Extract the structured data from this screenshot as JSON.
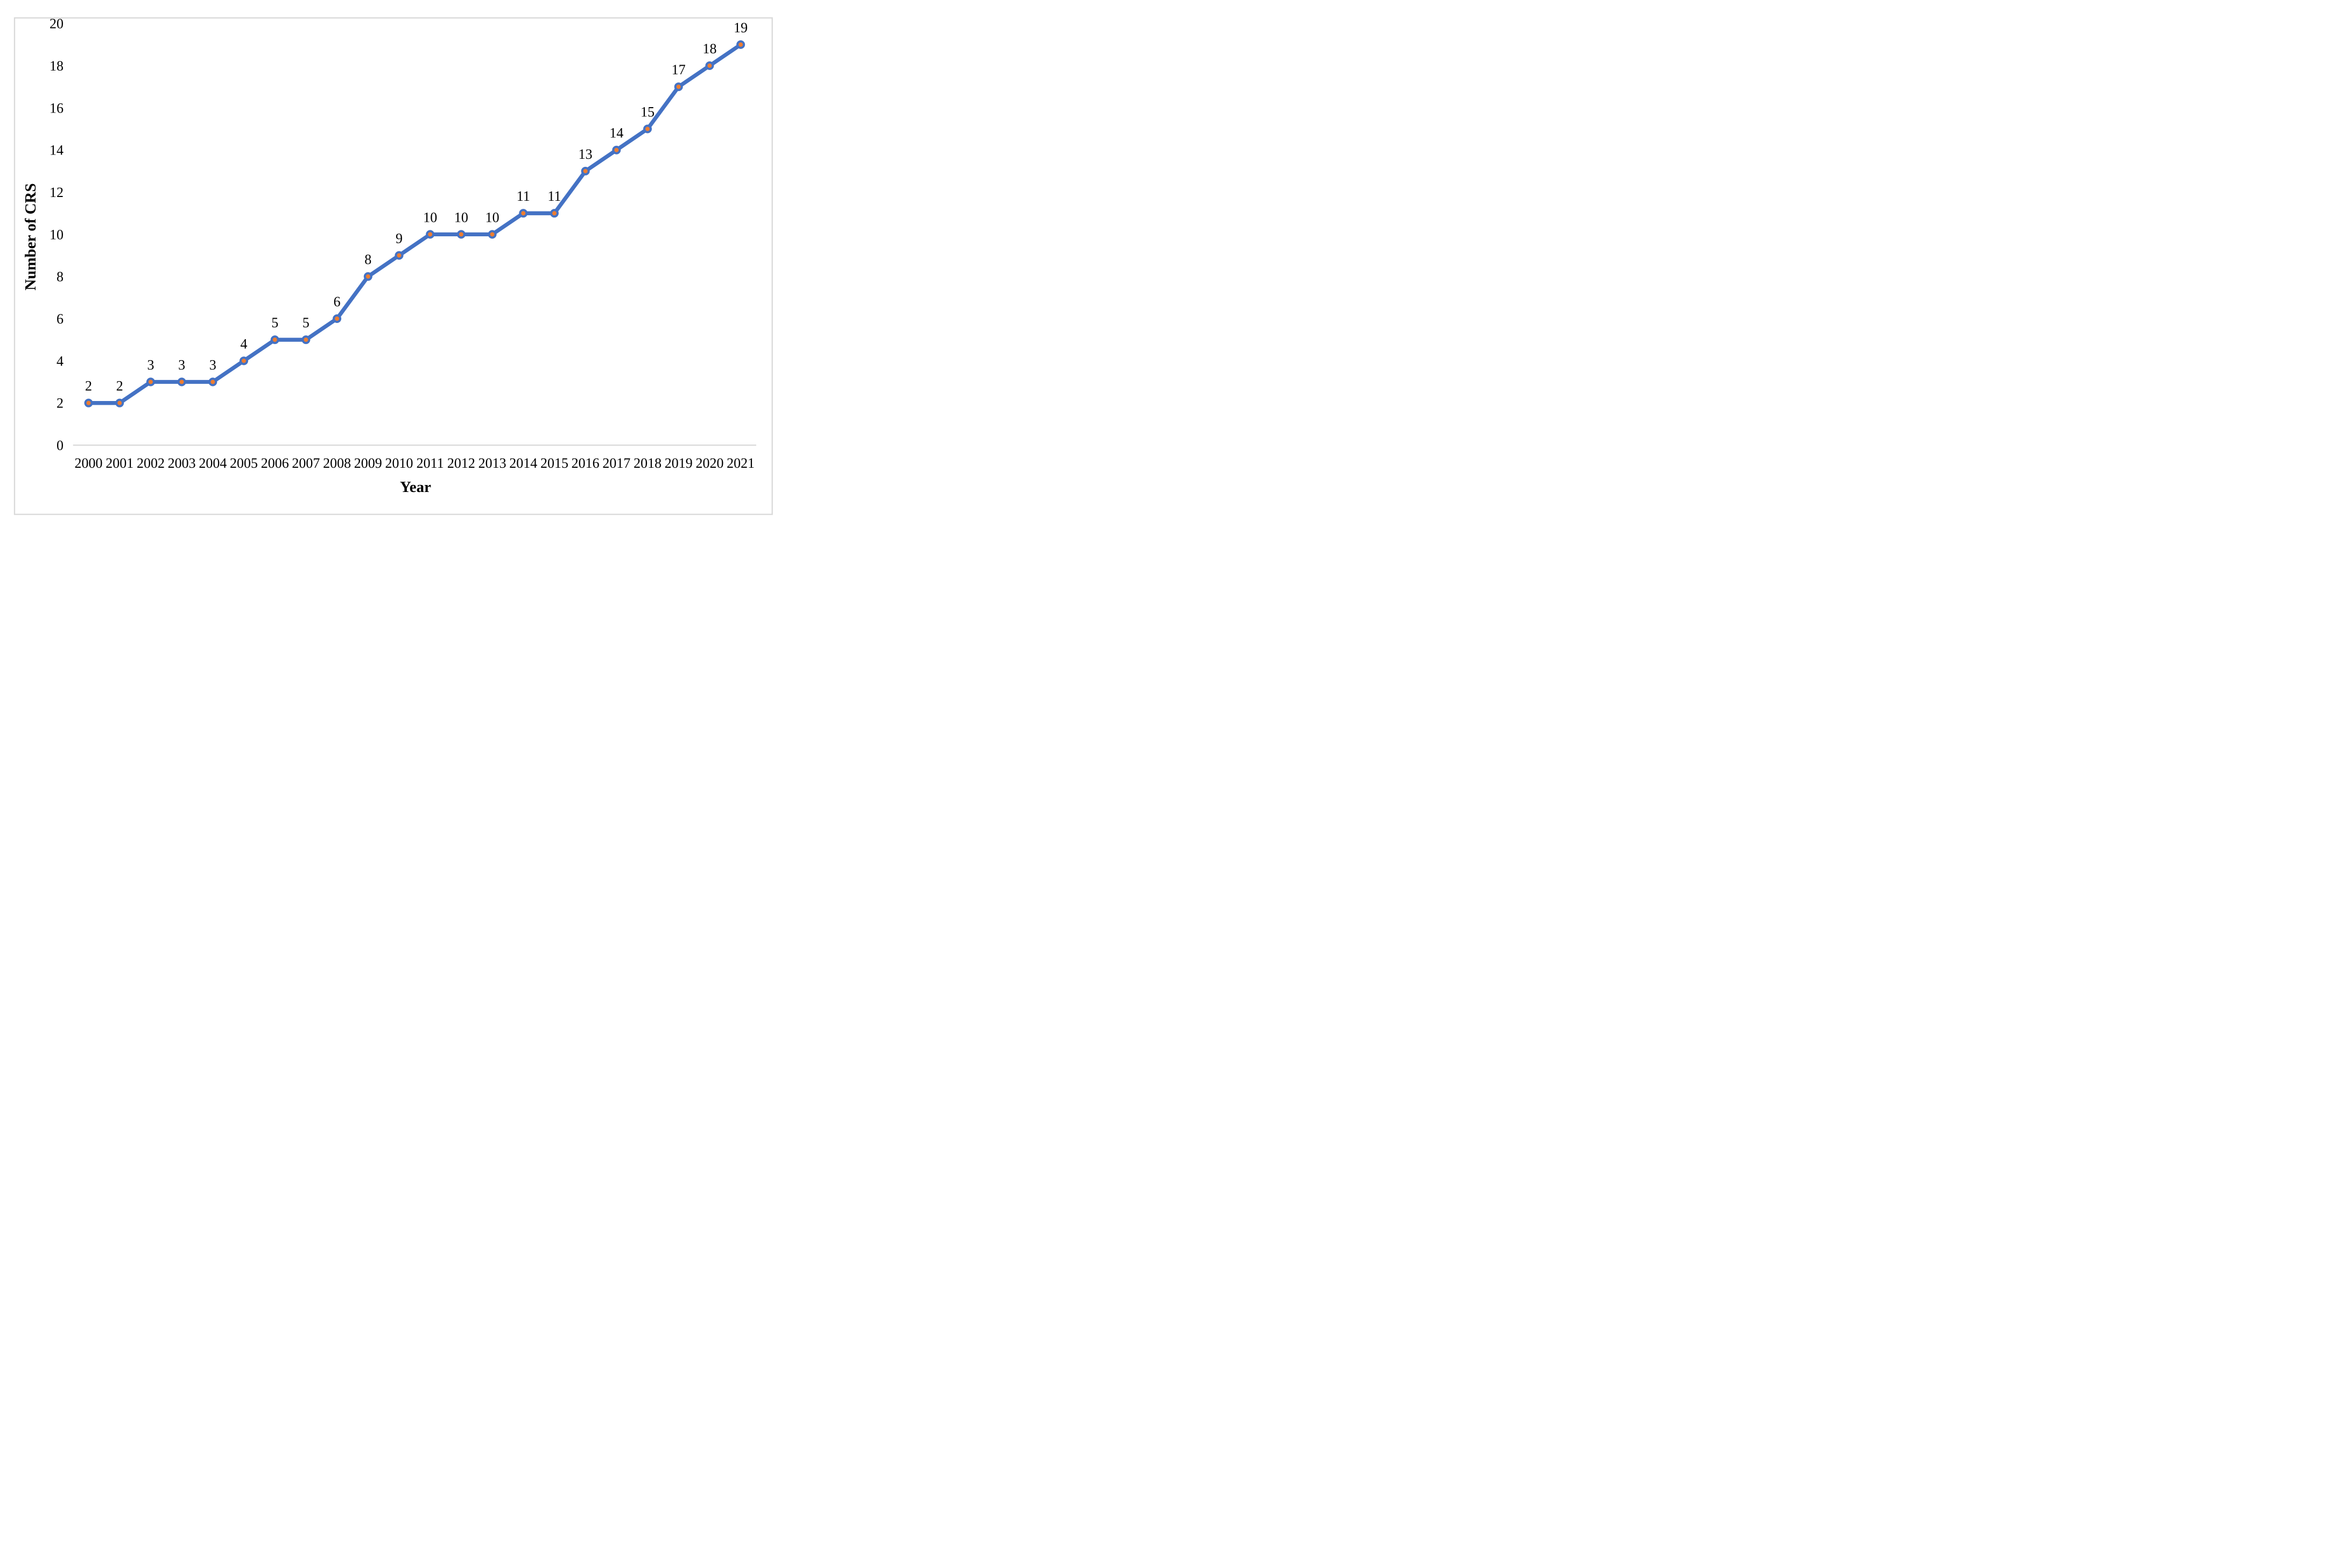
{
  "figure": {
    "background": "#FFFFFF",
    "border_color": "#D9D9D9"
  },
  "chart_data": {
    "type": "line",
    "title": "",
    "xlabel": "Year",
    "ylabel": "Number of CRS",
    "categories": [
      "2000",
      "2001",
      "2002",
      "2003",
      "2004",
      "2005",
      "2006",
      "2007",
      "2008",
      "2009",
      "2010",
      "2011",
      "2012",
      "2013",
      "2014",
      "2015",
      "2016",
      "2017",
      "2018",
      "2019",
      "2020",
      "2021"
    ],
    "series": [
      {
        "name": "Number of CRS",
        "values": [
          2,
          2,
          3,
          3,
          3,
          4,
          5,
          5,
          6,
          8,
          9,
          10,
          10,
          10,
          11,
          11,
          13,
          14,
          15,
          17,
          18,
          19
        ]
      }
    ],
    "data_labels": [
      "2",
      "2",
      "3",
      "3",
      "3",
      "4",
      "5",
      "5",
      "6",
      "8",
      "9",
      "10",
      "10",
      "10",
      "11",
      "11",
      "13",
      "14",
      "15",
      "17",
      "18",
      "19"
    ],
    "show_data_labels": true,
    "ylim": [
      0,
      20
    ],
    "yticks": [
      0,
      2,
      4,
      6,
      8,
      10,
      12,
      14,
      16,
      18,
      20
    ],
    "grid": "off",
    "legend": "none",
    "line_color": "#4472C4",
    "marker_fill": "#ED7D31",
    "marker_stroke": "#4472C4",
    "axis_line_color": "#D9D9D9",
    "text_color": "#000000"
  }
}
